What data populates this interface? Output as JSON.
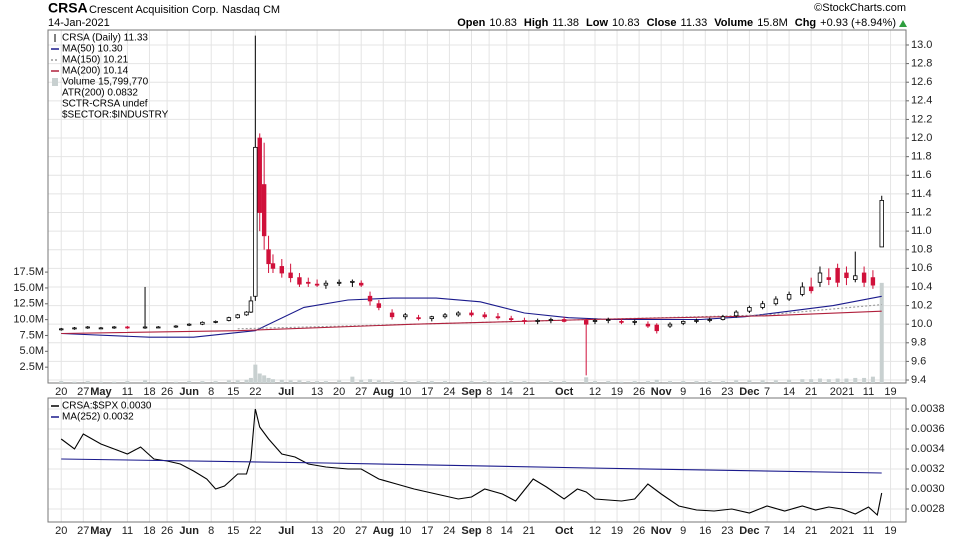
{
  "header": {
    "symbol": "CRSA",
    "company": "Crescent Acquisition Corp.",
    "exchange": "Nasdaq CM",
    "date": "14-Jan-2021",
    "quote": [
      {
        "label": "Open",
        "value": 10.83
      },
      {
        "label": "High",
        "value": 11.38
      },
      {
        "label": "Low",
        "value": 10.83
      },
      {
        "label": "Close",
        "value": 11.33
      },
      {
        "label": "Volume",
        "value": "15.8M"
      },
      {
        "label": "Chg",
        "value": "+0.93 (+8.94%)"
      }
    ],
    "copyright": "©StockCharts.com",
    "up_color": "#2e9e3e"
  },
  "chart_data": [
    {
      "type": "candlestick",
      "name": "CRSA (Daily) 11.33",
      "up_color": "#ffffff",
      "down_color": "#d0103a",
      "volume_color": "#c8d0d0",
      "grid": true,
      "x": [
        0,
        3,
        6,
        9,
        12,
        15,
        19,
        22,
        26,
        29,
        32,
        35,
        38,
        40,
        42,
        43,
        44,
        45,
        46,
        47,
        48,
        50,
        52,
        54,
        56,
        58,
        60,
        63,
        66,
        68,
        70,
        72,
        75,
        78,
        81,
        84,
        87,
        90,
        93,
        96,
        99,
        102,
        105,
        108,
        111,
        114,
        119,
        121,
        124,
        127,
        130,
        133,
        135,
        138,
        141,
        144,
        147,
        150,
        153,
        156,
        159,
        162,
        165,
        168,
        170,
        172,
        174,
        176,
        178,
        180,
        182,
        184,
        186
      ],
      "open": [
        9.94,
        9.95,
        9.96,
        9.96,
        9.96,
        9.97,
        9.96,
        9.97,
        9.97,
        9.99,
        10.0,
        10.02,
        10.04,
        10.07,
        10.1,
        10.13,
        10.3,
        12.0,
        11.5,
        10.8,
        10.65,
        10.62,
        10.55,
        10.5,
        10.45,
        10.43,
        10.42,
        10.44,
        10.45,
        10.44,
        10.3,
        10.22,
        10.12,
        10.08,
        10.07,
        10.06,
        10.08,
        10.1,
        10.12,
        10.1,
        10.08,
        10.06,
        10.04,
        10.03,
        10.04,
        10.05,
        10.04,
        10.03,
        10.04,
        10.03,
        10.02,
        10.0,
        9.99,
        9.98,
        10.01,
        10.03,
        10.04,
        10.05,
        10.09,
        10.14,
        10.18,
        10.22,
        10.27,
        10.32,
        10.4,
        10.45,
        10.5,
        10.6,
        10.55,
        10.48,
        10.55,
        10.5,
        10.83
      ],
      "high": [
        9.96,
        9.97,
        9.98,
        9.97,
        9.98,
        9.98,
        10.4,
        9.98,
        9.99,
        10.01,
        10.03,
        10.04,
        10.08,
        10.11,
        10.14,
        10.3,
        13.1,
        12.05,
        11.95,
        10.95,
        10.75,
        10.7,
        10.65,
        10.55,
        10.5,
        10.48,
        10.47,
        10.48,
        10.48,
        10.47,
        10.35,
        10.26,
        10.16,
        10.12,
        10.1,
        10.09,
        10.12,
        10.14,
        10.15,
        10.13,
        10.12,
        10.09,
        10.07,
        10.06,
        10.07,
        10.08,
        10.06,
        10.06,
        10.07,
        10.06,
        10.05,
        10.03,
        10.01,
        10.02,
        10.04,
        10.06,
        10.07,
        10.1,
        10.15,
        10.2,
        10.25,
        10.3,
        10.35,
        10.45,
        10.5,
        10.62,
        10.6,
        10.65,
        10.62,
        10.78,
        10.62,
        10.58,
        11.38
      ],
      "low": [
        9.93,
        9.94,
        9.95,
        9.95,
        9.95,
        9.95,
        9.95,
        9.96,
        9.96,
        9.98,
        9.99,
        10.01,
        10.03,
        10.06,
        10.09,
        10.12,
        10.25,
        11.0,
        10.8,
        10.55,
        10.55,
        10.5,
        10.45,
        10.4,
        10.4,
        10.4,
        10.38,
        10.41,
        10.4,
        10.4,
        10.2,
        10.15,
        10.05,
        10.05,
        10.04,
        10.03,
        10.06,
        10.08,
        10.08,
        10.06,
        10.05,
        10.03,
        10.0,
        10.0,
        10.01,
        10.02,
        9.45,
        10.0,
        10.01,
        10.0,
        9.99,
        9.96,
        9.9,
        9.96,
        9.99,
        10.01,
        10.02,
        10.04,
        10.07,
        10.12,
        10.16,
        10.2,
        10.25,
        10.3,
        10.33,
        10.4,
        10.42,
        10.4,
        10.42,
        10.45,
        10.4,
        10.38,
        10.83
      ],
      "close": [
        9.95,
        9.96,
        9.97,
        9.96,
        9.97,
        9.96,
        9.97,
        9.97,
        9.98,
        10.0,
        10.02,
        10.03,
        10.07,
        10.1,
        10.13,
        10.25,
        11.9,
        11.2,
        10.95,
        10.65,
        10.6,
        10.55,
        10.5,
        10.43,
        10.44,
        10.42,
        10.44,
        10.45,
        10.46,
        10.42,
        10.25,
        10.18,
        10.08,
        10.1,
        10.06,
        10.08,
        10.1,
        10.12,
        10.1,
        10.08,
        10.07,
        10.05,
        10.03,
        10.04,
        10.05,
        10.03,
        10.0,
        10.04,
        10.05,
        10.02,
        10.03,
        9.98,
        9.93,
        10.0,
        10.03,
        10.04,
        10.05,
        10.08,
        10.13,
        10.18,
        10.22,
        10.27,
        10.32,
        10.4,
        10.36,
        10.55,
        10.48,
        10.45,
        10.5,
        10.52,
        10.45,
        10.42,
        11.33
      ],
      "volume": [
        0.3,
        0.2,
        0.3,
        0.2,
        0.2,
        0.3,
        0.4,
        0.2,
        0.2,
        0.3,
        0.3,
        0.3,
        0.4,
        0.4,
        0.5,
        0.8,
        2.9,
        1.5,
        1.2,
        0.8,
        0.6,
        0.5,
        0.4,
        0.4,
        0.3,
        0.3,
        0.3,
        0.4,
        1.0,
        0.5,
        0.6,
        0.4,
        0.3,
        0.3,
        0.3,
        0.3,
        0.3,
        0.2,
        0.3,
        0.3,
        0.2,
        0.3,
        0.3,
        0.2,
        0.3,
        0.3,
        0.9,
        0.3,
        0.3,
        0.2,
        0.3,
        0.3,
        0.5,
        0.3,
        0.3,
        0.3,
        0.3,
        0.3,
        0.4,
        0.4,
        0.4,
        0.4,
        0.5,
        0.6,
        0.6,
        0.7,
        0.6,
        0.7,
        0.7,
        0.8,
        0.8,
        1.0,
        15.8
      ],
      "volume_name": "Volume 15,799,770",
      "lines": [
        {
          "name": "MA(50) 10.30",
          "color": "#1a1a8c",
          "dash": false,
          "x": [
            0,
            20,
            30,
            44,
            55,
            65,
            75,
            85,
            95,
            105,
            115,
            125,
            135,
            145,
            155,
            165,
            175,
            186
          ],
          "values": [
            9.9,
            9.86,
            9.86,
            9.93,
            10.18,
            10.26,
            10.28,
            10.28,
            10.24,
            10.12,
            10.07,
            10.05,
            10.05,
            10.05,
            10.08,
            10.14,
            10.2,
            10.3
          ]
        },
        {
          "name": "MA(150) 10.21",
          "color": "#999999",
          "dash": true,
          "x": [
            40,
            80,
            120,
            160,
            186
          ],
          "values": [
            9.95,
            10.0,
            10.05,
            10.1,
            10.21
          ]
        },
        {
          "name": "MA(200) 10.14",
          "color": "#b0203c",
          "dash": false,
          "x": [
            0,
            40,
            80,
            120,
            160,
            186
          ],
          "values": [
            9.9,
            9.93,
            10.0,
            10.05,
            10.09,
            10.14
          ]
        }
      ],
      "notes": [
        "ATR(200) 0.0832",
        "SCTR-CRSA undef",
        "$SECTOR:$INDUSTRY"
      ],
      "xlim": [
        -3,
        191.5
      ],
      "xticks": [
        {
          "value": 0,
          "label": "20"
        },
        {
          "value": 5,
          "label": "27"
        },
        {
          "value": 9,
          "label": "May"
        },
        {
          "value": 15,
          "label": "11"
        },
        {
          "value": 20,
          "label": "18"
        },
        {
          "value": 24,
          "label": "26"
        },
        {
          "value": 29,
          "label": "Jun"
        },
        {
          "value": 34,
          "label": "8"
        },
        {
          "value": 39,
          "label": "15"
        },
        {
          "value": 44,
          "label": "22"
        },
        {
          "value": 51,
          "label": "Jul"
        },
        {
          "value": 58,
          "label": "13"
        },
        {
          "value": 63,
          "label": "20"
        },
        {
          "value": 68,
          "label": "27"
        },
        {
          "value": 73,
          "label": "Aug"
        },
        {
          "value": 78,
          "label": "10"
        },
        {
          "value": 83,
          "label": "17"
        },
        {
          "value": 88,
          "label": "24"
        },
        {
          "value": 93,
          "label": "Sep"
        },
        {
          "value": 97,
          "label": "8"
        },
        {
          "value": 101,
          "label": "14"
        },
        {
          "value": 106,
          "label": "21"
        },
        {
          "value": 114,
          "label": "Oct"
        },
        {
          "value": 121,
          "label": "12"
        },
        {
          "value": 126,
          "label": "19"
        },
        {
          "value": 131,
          "label": "26"
        },
        {
          "value": 136,
          "label": "Nov"
        },
        {
          "value": 141,
          "label": "9"
        },
        {
          "value": 146,
          "label": "16"
        },
        {
          "value": 151,
          "label": "23"
        },
        {
          "value": 156,
          "label": "Dec"
        },
        {
          "value": 160,
          "label": "7"
        },
        {
          "value": 165,
          "label": "14"
        },
        {
          "value": 170,
          "label": "21"
        },
        {
          "value": 177,
          "label": "2021"
        },
        {
          "value": 183,
          "label": "11"
        },
        {
          "value": 188,
          "label": "19"
        }
      ],
      "ylim": [
        9.368,
        13.161
      ],
      "yticks": [
        9.4,
        9.6,
        9.8,
        {
          "value": 10.0,
          "label": "10.0"
        },
        10.2,
        10.4,
        10.6,
        10.8,
        {
          "value": 11.0,
          "label": "11.0"
        },
        11.2,
        11.4,
        11.6,
        11.8,
        {
          "value": 12.0,
          "label": "12.0"
        },
        12.2,
        12.4,
        12.6,
        12.8,
        {
          "value": 13.0,
          "label": "13.0"
        }
      ],
      "volume_ylim": [
        0,
        55.7
      ],
      "volume_ticks": [
        {
          "value": 2.5,
          "label": "2.5M"
        },
        {
          "value": 5,
          "label": "5.0M"
        },
        {
          "value": 7.5,
          "label": "7.5M"
        },
        {
          "value": 10,
          "label": "10.0M"
        },
        {
          "value": 12.5,
          "label": "12.5M"
        },
        {
          "value": 15,
          "label": "15.0M"
        },
        {
          "value": 17.5,
          "label": "17.5M"
        }
      ]
    },
    {
      "type": "line",
      "grid": true,
      "series": [
        {
          "name": "CRSA:$SPX 0.0030",
          "color": "#000000",
          "x": [
            0,
            3,
            5,
            9,
            12,
            15,
            18,
            21,
            24,
            27,
            30,
            33,
            35,
            37,
            40,
            42,
            43,
            44,
            45,
            47,
            50,
            53,
            56,
            60,
            65,
            68,
            72,
            76,
            80,
            85,
            90,
            93,
            96,
            100,
            103,
            107,
            110,
            114,
            117,
            119,
            121,
            124,
            127,
            130,
            133,
            136,
            140,
            144,
            148,
            152,
            156,
            160,
            164,
            168,
            171,
            174,
            177,
            180,
            183,
            185,
            186
          ],
          "values": [
            0.0035,
            0.0034,
            0.00355,
            0.00345,
            0.0034,
            0.00335,
            0.00342,
            0.0033,
            0.00328,
            0.00325,
            0.00318,
            0.0031,
            0.003,
            0.00303,
            0.00315,
            0.00315,
            0.0033,
            0.0038,
            0.00362,
            0.0035,
            0.00335,
            0.00332,
            0.00325,
            0.00322,
            0.0032,
            0.0032,
            0.0031,
            0.00305,
            0.003,
            0.00295,
            0.0029,
            0.00292,
            0.003,
            0.00295,
            0.00288,
            0.0031,
            0.00302,
            0.0029,
            0.003,
            0.00297,
            0.0029,
            0.00289,
            0.00288,
            0.0029,
            0.00305,
            0.00295,
            0.00283,
            0.00279,
            0.00278,
            0.0028,
            0.00276,
            0.00283,
            0.00278,
            0.00283,
            0.00279,
            0.00282,
            0.0028,
            0.00275,
            0.00282,
            0.00274,
            0.00296
          ]
        },
        {
          "name": "MA(252) 0.0032",
          "color": "#1a1a8c",
          "x": [
            0,
            60,
            120,
            186
          ],
          "values": [
            0.0033,
            0.00326,
            0.00321,
            0.00316
          ]
        }
      ],
      "xlim": [
        -3,
        191.5
      ],
      "xticks": [
        {
          "value": 0,
          "label": "20"
        },
        {
          "value": 5,
          "label": "27"
        },
        {
          "value": 9,
          "label": "May"
        },
        {
          "value": 15,
          "label": "11"
        },
        {
          "value": 20,
          "label": "18"
        },
        {
          "value": 24,
          "label": "26"
        },
        {
          "value": 29,
          "label": "Jun"
        },
        {
          "value": 34,
          "label": "8"
        },
        {
          "value": 39,
          "label": "15"
        },
        {
          "value": 44,
          "label": "22"
        },
        {
          "value": 51,
          "label": "Jul"
        },
        {
          "value": 58,
          "label": "13"
        },
        {
          "value": 63,
          "label": "20"
        },
        {
          "value": 68,
          "label": "27"
        },
        {
          "value": 73,
          "label": "Aug"
        },
        {
          "value": 78,
          "label": "10"
        },
        {
          "value": 83,
          "label": "17"
        },
        {
          "value": 88,
          "label": "24"
        },
        {
          "value": 93,
          "label": "Sep"
        },
        {
          "value": 97,
          "label": "8"
        },
        {
          "value": 101,
          "label": "14"
        },
        {
          "value": 106,
          "label": "21"
        },
        {
          "value": 114,
          "label": "Oct"
        },
        {
          "value": 121,
          "label": "12"
        },
        {
          "value": 126,
          "label": "19"
        },
        {
          "value": 131,
          "label": "26"
        },
        {
          "value": 136,
          "label": "Nov"
        },
        {
          "value": 141,
          "label": "9"
        },
        {
          "value": 146,
          "label": "16"
        },
        {
          "value": 151,
          "label": "23"
        },
        {
          "value": 156,
          "label": "Dec"
        },
        {
          "value": 160,
          "label": "7"
        },
        {
          "value": 165,
          "label": "14"
        },
        {
          "value": 170,
          "label": "21"
        },
        {
          "value": 177,
          "label": "2021"
        },
        {
          "value": 183,
          "label": "11"
        },
        {
          "value": 188,
          "label": "19"
        }
      ],
      "ylim": [
        0.00267,
        0.00391
      ],
      "yticks": [
        0.0028,
        {
          "value": 0.003,
          "label": "0.0030"
        },
        0.0032,
        0.0034,
        0.0036,
        0.0038
      ]
    }
  ]
}
